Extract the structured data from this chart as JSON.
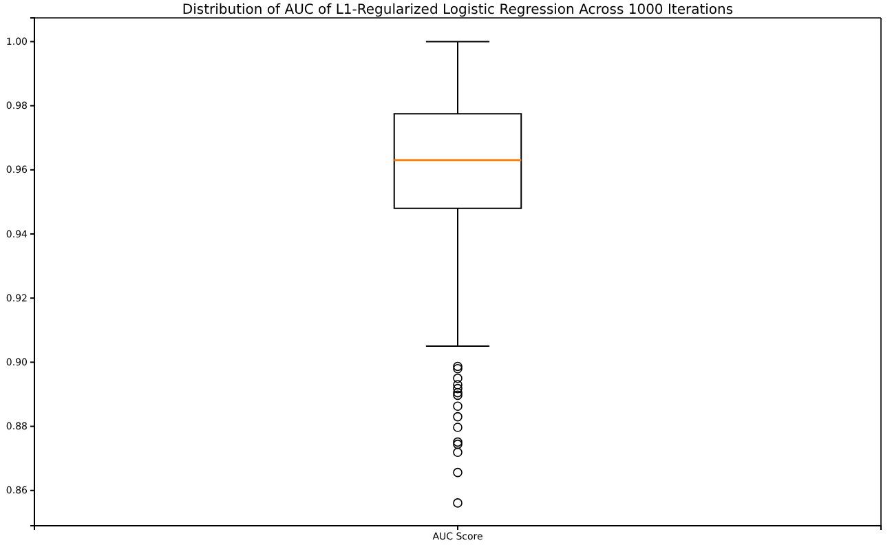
{
  "chart_data": {
    "type": "box",
    "title": "Distribution of AUC of L1-Regularized Logistic Regression Across 1000 Iterations",
    "categories": [
      "AUC Score"
    ],
    "boxes": [
      {
        "low": 0.905,
        "q1": 0.948,
        "median": 0.963,
        "q3": 0.9775,
        "high": 1.0,
        "outliers": [
          0.8987,
          0.898,
          0.895,
          0.893,
          0.8918,
          0.8905,
          0.8897,
          0.8863,
          0.883,
          0.8797,
          0.8751,
          0.8744,
          0.8719,
          0.8656,
          0.8561
        ]
      }
    ],
    "ylim": [
      0.849,
      1.0074
    ],
    "yticks": [
      {
        "value": 0.86,
        "label": "0.86"
      },
      {
        "value": 0.88,
        "label": "0.88"
      },
      {
        "value": 0.9,
        "label": "0.90"
      },
      {
        "value": 0.92,
        "label": "0.92"
      },
      {
        "value": 0.94,
        "label": "0.94"
      },
      {
        "value": 0.96,
        "label": "0.96"
      },
      {
        "value": 0.98,
        "label": "0.98"
      },
      {
        "value": 1.0,
        "label": "1.00"
      }
    ],
    "grid": false
  }
}
